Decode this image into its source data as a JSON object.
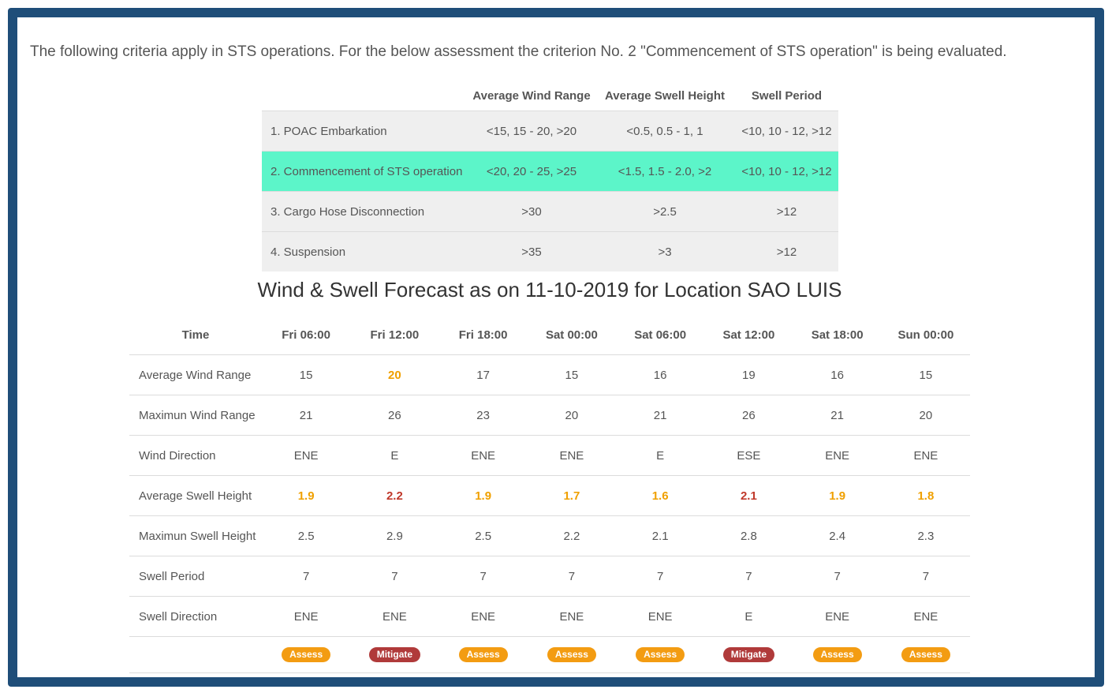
{
  "intro": "The following criteria apply in STS operations. For the below assessment the criterion No. 2 \"Commencement of STS operation\" is being evaluated.",
  "criteria": {
    "headers": [
      "",
      "Average Wind Range",
      "Average Swell Height",
      "Swell Period"
    ],
    "rows": [
      {
        "name": "1. POAC Embarkation",
        "wind": "<15, 15 - 20, >20",
        "swell": "<0.5, 0.5 - 1, 1",
        "period": "<10, 10 - 12, >12"
      },
      {
        "name": "2. Commencement of STS operation",
        "wind": "<20, 20 - 25, >25",
        "swell": "<1.5, 1.5 - 2.0, >2",
        "period": "<10, 10 - 12, >12"
      },
      {
        "name": "3. Cargo Hose Disconnection",
        "wind": ">30",
        "swell": ">2.5",
        "period": ">12"
      },
      {
        "name": "4. Suspension",
        "wind": ">35",
        "swell": ">3",
        "period": ">12"
      }
    ],
    "highlight_color": "#5cf5c9"
  },
  "forecast_title": "Wind & Swell Forecast as on 11-10-2019 for Location SAO LUIS",
  "forecast": {
    "time_label": "Time",
    "times": [
      "Fri 06:00",
      "Fri 12:00",
      "Fri 18:00",
      "Sat 00:00",
      "Sat 06:00",
      "Sat 12:00",
      "Sat 18:00",
      "Sun 00:00"
    ],
    "rows": [
      {
        "label": "Average Wind Range",
        "values": [
          "15",
          "20",
          "17",
          "15",
          "16",
          "19",
          "16",
          "15"
        ],
        "status": [
          "",
          "orange",
          "",
          "",
          "",
          "",
          "",
          ""
        ]
      },
      {
        "label": "Maximun Wind Range",
        "values": [
          "21",
          "26",
          "23",
          "20",
          "21",
          "26",
          "21",
          "20"
        ],
        "status": [
          "",
          "",
          "",
          "",
          "",
          "",
          "",
          ""
        ]
      },
      {
        "label": "Wind Direction",
        "values": [
          "ENE",
          "E",
          "ENE",
          "ENE",
          "E",
          "ESE",
          "ENE",
          "ENE"
        ],
        "status": [
          "",
          "",
          "",
          "",
          "",
          "",
          "",
          ""
        ]
      },
      {
        "label": "Average Swell Height",
        "values": [
          "1.9",
          "2.2",
          "1.9",
          "1.7",
          "1.6",
          "2.1",
          "1.9",
          "1.8"
        ],
        "status": [
          "orange",
          "red",
          "orange",
          "orange",
          "orange",
          "red",
          "orange",
          "orange"
        ]
      },
      {
        "label": "Maximun Swell Height",
        "values": [
          "2.5",
          "2.9",
          "2.5",
          "2.2",
          "2.1",
          "2.8",
          "2.4",
          "2.3"
        ],
        "status": [
          "",
          "",
          "",
          "",
          "",
          "",
          "",
          ""
        ]
      },
      {
        "label": "Swell Period",
        "values": [
          "7",
          "7",
          "7",
          "7",
          "7",
          "7",
          "7",
          "7"
        ],
        "status": [
          "",
          "",
          "",
          "",
          "",
          "",
          "",
          ""
        ]
      },
      {
        "label": "Swell Direction",
        "values": [
          "ENE",
          "ENE",
          "ENE",
          "ENE",
          "ENE",
          "E",
          "ENE",
          "ENE"
        ],
        "status": [
          "",
          "",
          "",
          "",
          "",
          "",
          "",
          ""
        ]
      }
    ],
    "badges": [
      {
        "label": "Assess",
        "kind": "assess"
      },
      {
        "label": "Mitigate",
        "kind": "mitigate"
      },
      {
        "label": "Assess",
        "kind": "assess"
      },
      {
        "label": "Assess",
        "kind": "assess"
      },
      {
        "label": "Assess",
        "kind": "assess"
      },
      {
        "label": "Mitigate",
        "kind": "mitigate"
      },
      {
        "label": "Assess",
        "kind": "assess"
      },
      {
        "label": "Assess",
        "kind": "assess"
      }
    ],
    "colors": {
      "orange": "#f0a000",
      "red": "#c0392b",
      "assess": "#f39c12",
      "mitigate": "#b03a3a"
    }
  }
}
